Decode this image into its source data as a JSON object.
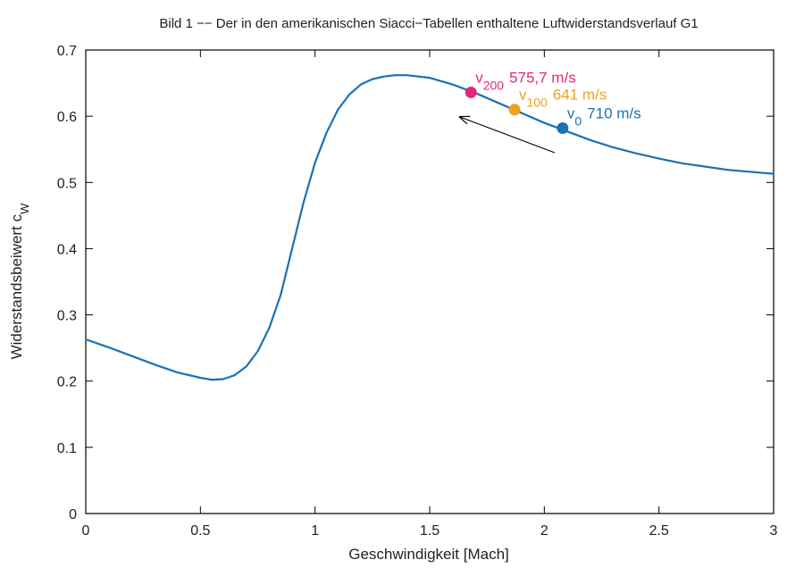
{
  "chart_data": {
    "type": "line",
    "title": "Bild 1 −− Der in den amerikanischen Siacci−Tabellen enthaltene Luftwiderstandsverlauf G1",
    "x_label": "Geschwindigkeit [Mach]",
    "y_label": "Widerstandsbeiwert c",
    "y_label_sub": "W",
    "xlim": [
      0,
      3
    ],
    "ylim": [
      0,
      0.7
    ],
    "xticks": [
      0,
      0.5,
      1,
      1.5,
      2,
      2.5,
      3
    ],
    "yticks": [
      0,
      0.1,
      0.2,
      0.3,
      0.4,
      0.5,
      0.6,
      0.7
    ],
    "series": [
      {
        "color": "#1a72b5",
        "x": [
          0,
          0.1,
          0.2,
          0.3,
          0.4,
          0.5,
          0.55,
          0.6,
          0.65,
          0.7,
          0.75,
          0.8,
          0.85,
          0.9,
          0.95,
          1.0,
          1.05,
          1.1,
          1.15,
          1.2,
          1.25,
          1.3,
          1.35,
          1.4,
          1.5,
          1.6,
          1.7,
          1.8,
          1.9,
          2.0,
          2.1,
          2.2,
          2.3,
          2.4,
          2.5,
          2.6,
          2.7,
          2.8,
          2.9,
          3.0
        ],
        "values": [
          0.263,
          0.251,
          0.238,
          0.225,
          0.213,
          0.205,
          0.202,
          0.203,
          0.209,
          0.222,
          0.245,
          0.28,
          0.33,
          0.4,
          0.47,
          0.53,
          0.575,
          0.61,
          0.633,
          0.648,
          0.656,
          0.66,
          0.662,
          0.662,
          0.658,
          0.648,
          0.635,
          0.62,
          0.605,
          0.59,
          0.577,
          0.564,
          0.553,
          0.544,
          0.536,
          0.529,
          0.524,
          0.519,
          0.516,
          0.513
        ]
      }
    ],
    "markers": [
      {
        "x": 2.08,
        "y": 0.582,
        "color": "#1a72b5",
        "label": "v",
        "sub": "0",
        "speed": "710 m/s"
      },
      {
        "x": 1.87,
        "y": 0.61,
        "color": "#f0a020",
        "label": "v",
        "sub": "100",
        "speed": "641 m/s"
      },
      {
        "x": 1.68,
        "y": 0.636,
        "color": "#e6267a",
        "label": "v",
        "sub": "200",
        "speed": "575,7 m/s"
      }
    ]
  }
}
